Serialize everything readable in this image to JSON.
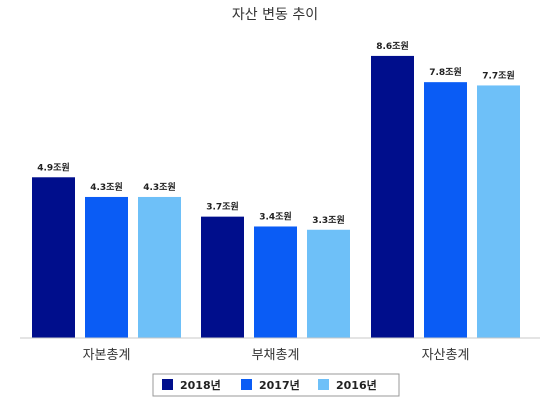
{
  "chart_data": {
    "type": "bar",
    "title": "자산 변동 추이",
    "categories": [
      "자본총계",
      "부채총계",
      "자산총계"
    ],
    "series": [
      {
        "name": "2018년",
        "color": "#000e8c",
        "values": [
          4.9,
          3.7,
          8.6
        ],
        "labels": [
          "4.9조원",
          "3.7조원",
          "8.6조원"
        ]
      },
      {
        "name": "2017년",
        "color": "#0a5cf5",
        "values": [
          4.3,
          3.4,
          7.8
        ],
        "labels": [
          "4.3조원",
          "3.4조원",
          "7.8조원"
        ]
      },
      {
        "name": "2016년",
        "color": "#6ec0f8",
        "values": [
          4.3,
          3.3,
          7.7
        ],
        "labels": [
          "4.3조원",
          "3.3조원",
          "7.7조원"
        ]
      }
    ],
    "ylim": [
      0,
      10
    ],
    "grid": false,
    "legend_position": "bottom"
  }
}
